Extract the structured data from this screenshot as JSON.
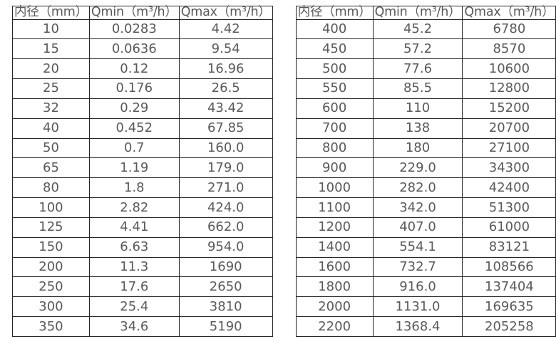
{
  "colors": {
    "border": "#262626",
    "text": "#595959",
    "background": "#ffffff"
  },
  "tables": [
    {
      "name": "flow-table-small-diameters",
      "headers": [
        "内径（mm）",
        "Qmin（m³/h）",
        "Qmax（m³/h）"
      ],
      "rows": [
        [
          "10",
          "0.0283",
          "4.42"
        ],
        [
          "15",
          "0.0636",
          "9.54"
        ],
        [
          "20",
          "0.12",
          "16.96"
        ],
        [
          "25",
          "0.176",
          "26.5"
        ],
        [
          "32",
          "0.29",
          "43.42"
        ],
        [
          "40",
          "0.452",
          "67.85"
        ],
        [
          "50",
          "0.7",
          "160.0"
        ],
        [
          "65",
          "1.19",
          "179.0"
        ],
        [
          "80",
          "1.8",
          "271.0"
        ],
        [
          "100",
          "2.82",
          "424.0"
        ],
        [
          "125",
          "4.41",
          "662.0"
        ],
        [
          "150",
          "6.63",
          "954.0"
        ],
        [
          "200",
          "11.3",
          "1690"
        ],
        [
          "250",
          "17.6",
          "2650"
        ],
        [
          "300",
          "25.4",
          "3810"
        ],
        [
          "350",
          "34.6",
          "5190"
        ]
      ]
    },
    {
      "name": "flow-table-large-diameters",
      "headers": [
        "内径（mm）",
        "Qmin（m³/h）",
        "Qmax（m³/h）"
      ],
      "rows": [
        [
          "400",
          "45.2",
          "6780"
        ],
        [
          "450",
          "57.2",
          "8570"
        ],
        [
          "500",
          "77.6",
          "10600"
        ],
        [
          "550",
          "85.5",
          "12800"
        ],
        [
          "600",
          "110",
          "15200"
        ],
        [
          "700",
          "138",
          "20700"
        ],
        [
          "800",
          "180",
          "27100"
        ],
        [
          "900",
          "229.0",
          "34300"
        ],
        [
          "1000",
          "282.0",
          "42400"
        ],
        [
          "1100",
          "342.0",
          "51300"
        ],
        [
          "1200",
          "407.0",
          "61000"
        ],
        [
          "1400",
          "554.1",
          "83121"
        ],
        [
          "1600",
          "732.7",
          "108566"
        ],
        [
          "1800",
          "916.0",
          "137404"
        ],
        [
          "2000",
          "1131.0",
          "169635"
        ],
        [
          "2200",
          "1368.4",
          "205258"
        ]
      ]
    }
  ]
}
